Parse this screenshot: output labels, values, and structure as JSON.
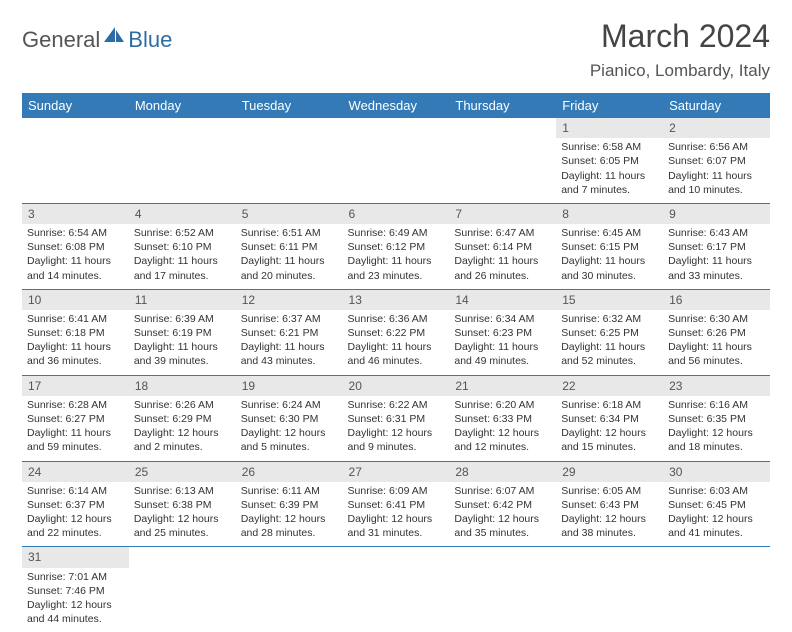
{
  "logo": {
    "part1": "General",
    "part2": "Blue",
    "icon_fill": "#2e6da4"
  },
  "title": "March 2024",
  "location": "Pianico, Lombardy, Italy",
  "colors": {
    "header_bg": "#337ab7",
    "header_text": "#ffffff",
    "daynum_bg": "#e8e8e8",
    "body_text": "#333333",
    "rule": "#337ab7"
  },
  "day_headers": [
    "Sunday",
    "Monday",
    "Tuesday",
    "Wednesday",
    "Thursday",
    "Friday",
    "Saturday"
  ],
  "weeks": [
    [
      null,
      null,
      null,
      null,
      null,
      {
        "n": "1",
        "sr": "6:58 AM",
        "ss": "6:05 PM",
        "dl": "11 hours and 7 minutes."
      },
      {
        "n": "2",
        "sr": "6:56 AM",
        "ss": "6:07 PM",
        "dl": "11 hours and 10 minutes."
      }
    ],
    [
      {
        "n": "3",
        "sr": "6:54 AM",
        "ss": "6:08 PM",
        "dl": "11 hours and 14 minutes."
      },
      {
        "n": "4",
        "sr": "6:52 AM",
        "ss": "6:10 PM",
        "dl": "11 hours and 17 minutes."
      },
      {
        "n": "5",
        "sr": "6:51 AM",
        "ss": "6:11 PM",
        "dl": "11 hours and 20 minutes."
      },
      {
        "n": "6",
        "sr": "6:49 AM",
        "ss": "6:12 PM",
        "dl": "11 hours and 23 minutes."
      },
      {
        "n": "7",
        "sr": "6:47 AM",
        "ss": "6:14 PM",
        "dl": "11 hours and 26 minutes."
      },
      {
        "n": "8",
        "sr": "6:45 AM",
        "ss": "6:15 PM",
        "dl": "11 hours and 30 minutes."
      },
      {
        "n": "9",
        "sr": "6:43 AM",
        "ss": "6:17 PM",
        "dl": "11 hours and 33 minutes."
      }
    ],
    [
      {
        "n": "10",
        "sr": "6:41 AM",
        "ss": "6:18 PM",
        "dl": "11 hours and 36 minutes."
      },
      {
        "n": "11",
        "sr": "6:39 AM",
        "ss": "6:19 PM",
        "dl": "11 hours and 39 minutes."
      },
      {
        "n": "12",
        "sr": "6:37 AM",
        "ss": "6:21 PM",
        "dl": "11 hours and 43 minutes."
      },
      {
        "n": "13",
        "sr": "6:36 AM",
        "ss": "6:22 PM",
        "dl": "11 hours and 46 minutes."
      },
      {
        "n": "14",
        "sr": "6:34 AM",
        "ss": "6:23 PM",
        "dl": "11 hours and 49 minutes."
      },
      {
        "n": "15",
        "sr": "6:32 AM",
        "ss": "6:25 PM",
        "dl": "11 hours and 52 minutes."
      },
      {
        "n": "16",
        "sr": "6:30 AM",
        "ss": "6:26 PM",
        "dl": "11 hours and 56 minutes."
      }
    ],
    [
      {
        "n": "17",
        "sr": "6:28 AM",
        "ss": "6:27 PM",
        "dl": "11 hours and 59 minutes."
      },
      {
        "n": "18",
        "sr": "6:26 AM",
        "ss": "6:29 PM",
        "dl": "12 hours and 2 minutes."
      },
      {
        "n": "19",
        "sr": "6:24 AM",
        "ss": "6:30 PM",
        "dl": "12 hours and 5 minutes."
      },
      {
        "n": "20",
        "sr": "6:22 AM",
        "ss": "6:31 PM",
        "dl": "12 hours and 9 minutes."
      },
      {
        "n": "21",
        "sr": "6:20 AM",
        "ss": "6:33 PM",
        "dl": "12 hours and 12 minutes."
      },
      {
        "n": "22",
        "sr": "6:18 AM",
        "ss": "6:34 PM",
        "dl": "12 hours and 15 minutes."
      },
      {
        "n": "23",
        "sr": "6:16 AM",
        "ss": "6:35 PM",
        "dl": "12 hours and 18 minutes."
      }
    ],
    [
      {
        "n": "24",
        "sr": "6:14 AM",
        "ss": "6:37 PM",
        "dl": "12 hours and 22 minutes."
      },
      {
        "n": "25",
        "sr": "6:13 AM",
        "ss": "6:38 PM",
        "dl": "12 hours and 25 minutes."
      },
      {
        "n": "26",
        "sr": "6:11 AM",
        "ss": "6:39 PM",
        "dl": "12 hours and 28 minutes."
      },
      {
        "n": "27",
        "sr": "6:09 AM",
        "ss": "6:41 PM",
        "dl": "12 hours and 31 minutes."
      },
      {
        "n": "28",
        "sr": "6:07 AM",
        "ss": "6:42 PM",
        "dl": "12 hours and 35 minutes."
      },
      {
        "n": "29",
        "sr": "6:05 AM",
        "ss": "6:43 PM",
        "dl": "12 hours and 38 minutes."
      },
      {
        "n": "30",
        "sr": "6:03 AM",
        "ss": "6:45 PM",
        "dl": "12 hours and 41 minutes."
      }
    ],
    [
      {
        "n": "31",
        "sr": "7:01 AM",
        "ss": "7:46 PM",
        "dl": "12 hours and 44 minutes."
      },
      null,
      null,
      null,
      null,
      null,
      null
    ]
  ],
  "labels": {
    "sunrise": "Sunrise: ",
    "sunset": "Sunset: ",
    "daylight": "Daylight: "
  }
}
